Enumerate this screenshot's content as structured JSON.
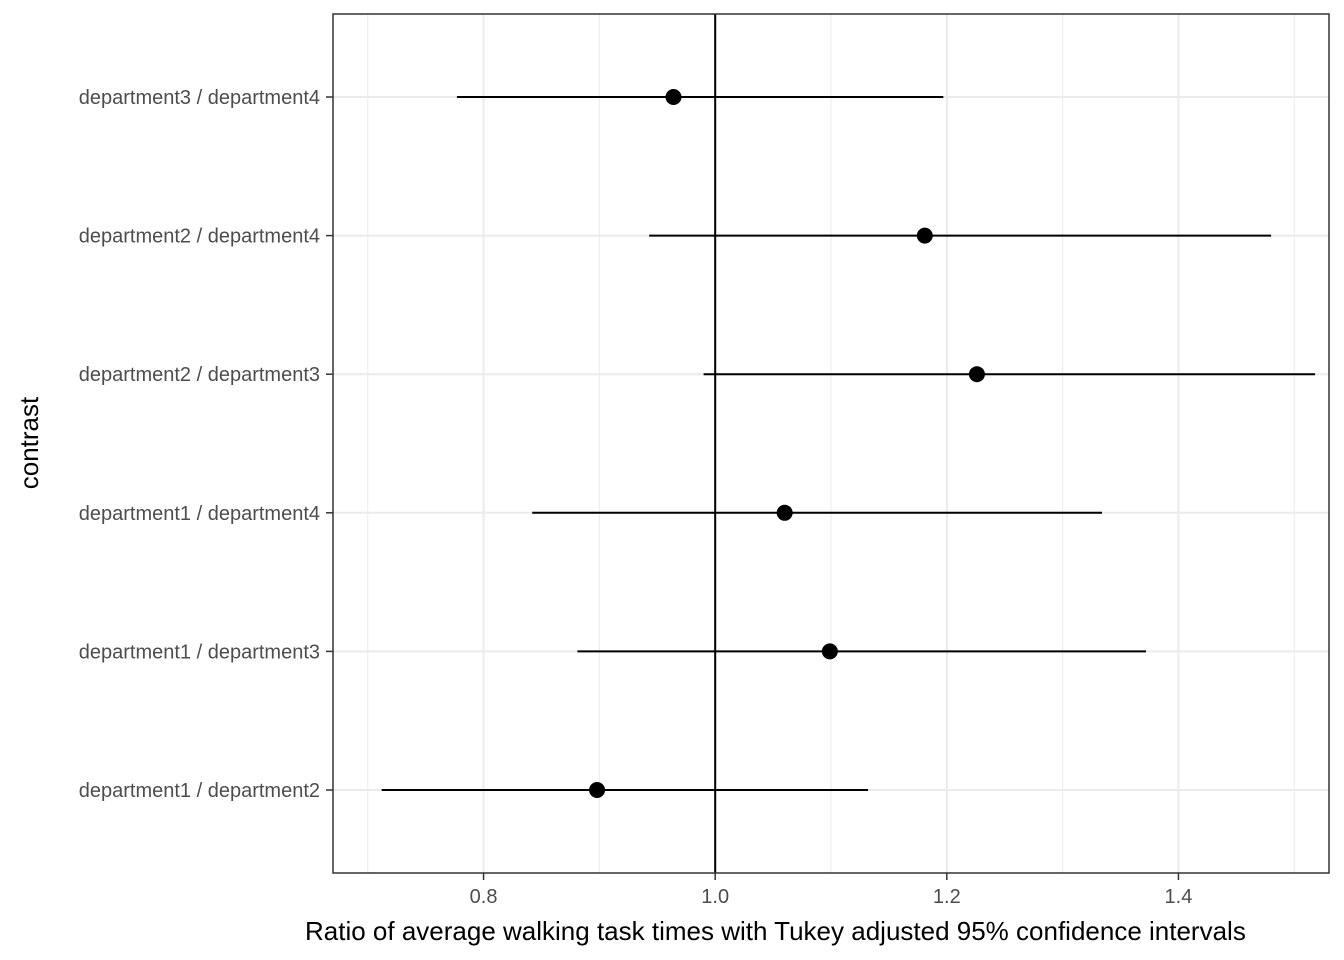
{
  "chart_data": {
    "type": "scatter",
    "subtype": "interval-plot",
    "title": "",
    "xlabel": "Ratio of average walking task times with Tukey adjusted 95% confidence intervals",
    "ylabel": "contrast",
    "xlim": [
      0.67,
      1.53
    ],
    "x_ticks": [
      0.8,
      1.0,
      1.2,
      1.4
    ],
    "x_tick_labels": [
      "0.8",
      "1.0",
      "1.2",
      "1.4"
    ],
    "reference_line": 1.0,
    "grid": true,
    "legend": "none",
    "colors": {
      "point": "#000000",
      "interval": "#000000",
      "grid": "#ebebeb",
      "panel_border": "#333333"
    },
    "contrasts": [
      {
        "label": "department1 / department2",
        "ratio": 0.898,
        "lower": 0.712,
        "upper": 1.132
      },
      {
        "label": "department1 / department3",
        "ratio": 1.099,
        "lower": 0.881,
        "upper": 1.372
      },
      {
        "label": "department1 / department4",
        "ratio": 1.06,
        "lower": 0.842,
        "upper": 1.334
      },
      {
        "label": "department2 / department3",
        "ratio": 1.226,
        "lower": 0.99,
        "upper": 1.518
      },
      {
        "label": "department2 / department4",
        "ratio": 1.181,
        "lower": 0.943,
        "upper": 1.48
      },
      {
        "label": "department3 / department4",
        "ratio": 0.964,
        "lower": 0.777,
        "upper": 1.197
      }
    ]
  }
}
